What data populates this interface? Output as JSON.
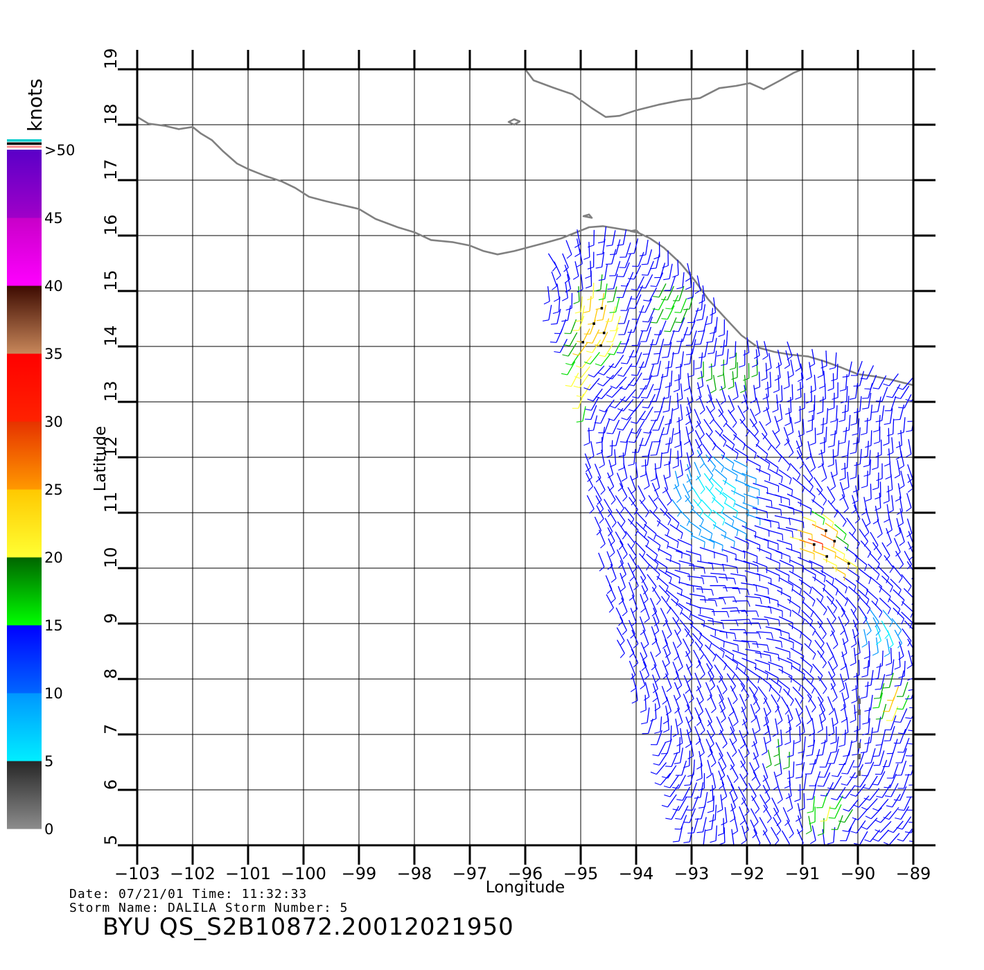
{
  "axes": {
    "xlabel": "Longitude",
    "ylabel": "Latitude",
    "lon_ticks": [
      -103,
      -102,
      -101,
      -100,
      -99,
      -98,
      -97,
      -96,
      -95,
      -94,
      -93,
      -92,
      -91,
      -90,
      -89
    ],
    "lon_tick_labels": [
      "−103",
      "−102",
      "−101",
      "−100",
      "−99",
      "−98",
      "−97",
      "−96",
      "−95",
      "−94",
      "−93",
      "−92",
      "−91",
      "−90",
      "−89"
    ],
    "lat_ticks": [
      5,
      6,
      7,
      8,
      9,
      10,
      11,
      12,
      13,
      14,
      15,
      16,
      17,
      18,
      19
    ],
    "lat_tick_labels": [
      "5",
      "6",
      "7",
      "8",
      "9",
      "10",
      "11",
      "12",
      "13",
      "14",
      "15",
      "16",
      "17",
      "18",
      "19"
    ],
    "lon_range": [
      -103,
      -89
    ],
    "lat_range": [
      5,
      19
    ],
    "grid": true
  },
  "colorbar": {
    "units": "knots",
    "tick_labels": [
      "0",
      "5",
      "10",
      "15",
      "20",
      "25",
      "30",
      "35",
      "40",
      "45",
      ">50"
    ],
    "bands": [
      {
        "from": 0,
        "to": 5,
        "top": "#262626",
        "bottom": "#8c8c8c"
      },
      {
        "from": 5,
        "to": 10,
        "top": "#0096ff",
        "bottom": "#00eeff"
      },
      {
        "from": 10,
        "to": 15,
        "top": "#0000ff",
        "bottom": "#0066ff"
      },
      {
        "from": 15,
        "to": 20,
        "top": "#006400",
        "bottom": "#00ff00"
      },
      {
        "from": 20,
        "to": 25,
        "top": "#ffc800",
        "bottom": "#ffff33"
      },
      {
        "from": 25,
        "to": 30,
        "top": "#e63200",
        "bottom": "#ff9900"
      },
      {
        "from": 30,
        "to": 35,
        "top": "#ff0000",
        "bottom": "#ff2200"
      },
      {
        "from": 35,
        "to": 40,
        "top": "#3c0a00",
        "bottom": "#c8875a"
      },
      {
        "from": 40,
        "to": 45,
        "top": "#c800c8",
        "bottom": "#ff00ff"
      },
      {
        "from": 45,
        "to": 50,
        "top": "#5a00c8",
        "bottom": "#a000c8"
      }
    ],
    "top_stripes": [
      "#00cccc",
      "#000000",
      "#ff9999"
    ]
  },
  "coastline": {
    "color": "#808080",
    "mainland": [
      [
        -103,
        18.14
      ],
      [
        -102.8,
        18.02
      ],
      [
        -102.5,
        17.98
      ],
      [
        -102.25,
        17.92
      ],
      [
        -102.0,
        17.96
      ],
      [
        -101.85,
        17.84
      ],
      [
        -101.65,
        17.72
      ],
      [
        -101.45,
        17.52
      ],
      [
        -101.2,
        17.3
      ],
      [
        -101.0,
        17.2
      ],
      [
        -100.7,
        17.08
      ],
      [
        -100.4,
        16.98
      ],
      [
        -100.15,
        16.86
      ],
      [
        -99.9,
        16.7
      ],
      [
        -99.6,
        16.62
      ],
      [
        -99.3,
        16.55
      ],
      [
        -99.0,
        16.48
      ],
      [
        -98.7,
        16.3
      ],
      [
        -98.3,
        16.15
      ],
      [
        -98.0,
        16.06
      ],
      [
        -97.7,
        15.92
      ],
      [
        -97.3,
        15.88
      ],
      [
        -97.0,
        15.82
      ],
      [
        -96.75,
        15.72
      ],
      [
        -96.5,
        15.66
      ],
      [
        -96.2,
        15.72
      ],
      [
        -95.9,
        15.8
      ],
      [
        -95.6,
        15.88
      ],
      [
        -95.35,
        15.95
      ],
      [
        -95.1,
        16.05
      ],
      [
        -94.85,
        16.15
      ],
      [
        -94.6,
        16.17
      ],
      [
        -94.3,
        16.12
      ],
      [
        -94.0,
        16.07
      ],
      [
        -93.75,
        15.95
      ],
      [
        -93.5,
        15.78
      ],
      [
        -93.2,
        15.5
      ],
      [
        -92.95,
        15.2
      ],
      [
        -92.7,
        14.85
      ],
      [
        -92.4,
        14.52
      ],
      [
        -92.1,
        14.2
      ],
      [
        -91.8,
        13.98
      ],
      [
        -91.5,
        13.9
      ],
      [
        -91.2,
        13.85
      ],
      [
        -90.9,
        13.82
      ],
      [
        -90.6,
        13.73
      ],
      [
        -90.3,
        13.62
      ],
      [
        -90.0,
        13.5
      ],
      [
        -89.7,
        13.46
      ],
      [
        -89.4,
        13.4
      ],
      [
        -89.0,
        13.3
      ]
    ],
    "gulf": [
      [
        -96.0,
        19.0
      ],
      [
        -95.85,
        18.8
      ],
      [
        -95.5,
        18.67
      ],
      [
        -95.15,
        18.55
      ],
      [
        -94.8,
        18.3
      ],
      [
        -94.55,
        18.14
      ],
      [
        -94.3,
        18.16
      ],
      [
        -94.0,
        18.26
      ],
      [
        -93.6,
        18.36
      ],
      [
        -93.2,
        18.44
      ],
      [
        -92.85,
        18.48
      ],
      [
        -92.5,
        18.66
      ],
      [
        -92.2,
        18.7
      ],
      [
        -91.95,
        18.75
      ],
      [
        -91.7,
        18.64
      ],
      [
        -91.4,
        18.8
      ],
      [
        -91.15,
        18.94
      ],
      [
        -91.0,
        19.0
      ]
    ],
    "islands": [
      [
        [
          -96.3,
          18.05
        ],
        [
          -96.2,
          18.1
        ],
        [
          -96.1,
          18.06
        ],
        [
          -96.2,
          18.0
        ],
        [
          -96.3,
          18.05
        ]
      ],
      [
        [
          -94.95,
          16.35
        ],
        [
          -94.85,
          16.38
        ],
        [
          -94.8,
          16.32
        ],
        [
          -94.95,
          16.35
        ]
      ],
      [
        [
          -94.1,
          16.08
        ],
        [
          -93.95,
          16.05
        ],
        [
          -94.0,
          16.1
        ],
        [
          -94.1,
          16.08
        ]
      ]
    ]
  },
  "wind_field": {
    "swath": [
      [
        -95.5,
        15.5
      ],
      [
        -94.8,
        16.0
      ],
      [
        -93.7,
        15.8
      ],
      [
        -92.9,
        15.2
      ],
      [
        -92.6,
        14.8
      ],
      [
        -92.2,
        14.0
      ],
      [
        -91.0,
        13.8
      ],
      [
        -89.0,
        13.3
      ],
      [
        -88.9,
        5.0
      ],
      [
        -93.3,
        5.0
      ],
      [
        -94.5,
        9.5
      ],
      [
        -95.0,
        12.5
      ],
      [
        -95.6,
        14.5
      ]
    ],
    "speed_zones": [
      {
        "lon": -94.7,
        "lat": 14.3,
        "rlon": 0.55,
        "rlat": 0.9,
        "speed": 27
      },
      {
        "lon": -95.1,
        "lat": 13.0,
        "rlon": 0.3,
        "rlat": 1.3,
        "speed": 24
      },
      {
        "lon": -93.4,
        "lat": 14.6,
        "rlon": 0.5,
        "rlat": 0.45,
        "speed": 21
      },
      {
        "lon": -92.3,
        "lat": 13.4,
        "rlon": 0.9,
        "rlat": 0.35,
        "speed": 18
      },
      {
        "lon": -90.6,
        "lat": 10.5,
        "rlon": 0.5,
        "rlat": 0.5,
        "speed": 31
      },
      {
        "lon": -90.2,
        "lat": 10.0,
        "rlon": 0.3,
        "rlat": 0.3,
        "speed": 28
      },
      {
        "lon": -89.4,
        "lat": 7.5,
        "rlon": 0.3,
        "rlat": 0.4,
        "speed": 27
      },
      {
        "lon": -90.6,
        "lat": 5.5,
        "rlon": 0.5,
        "rlat": 0.4,
        "speed": 22
      },
      {
        "lon": -91.4,
        "lat": 6.5,
        "rlon": 0.3,
        "rlat": 0.3,
        "speed": 18
      },
      {
        "lon": -92.5,
        "lat": 11.2,
        "rlon": 0.9,
        "rlat": 0.9,
        "speed": 8
      },
      {
        "lon": -89.5,
        "lat": 8.7,
        "rlon": 0.5,
        "rlat": 0.4,
        "speed": 8
      }
    ],
    "base_speed": 13,
    "rain_flag_threshold": 24,
    "missing_points": [
      [
        -89.98,
        7.6
      ],
      [
        -89.98,
        7.4
      ],
      [
        -89.98,
        6.8
      ],
      [
        -89.98,
        6.6
      ],
      [
        -89.98,
        6.3
      ]
    ]
  },
  "footer": {
    "date_line": "Date: 07/21/01   Time: 11:32:33",
    "storm_line": "Storm Name: DALILA   Storm Number: 5",
    "product_id": "BYU QS_S2B10872.20012021950"
  }
}
